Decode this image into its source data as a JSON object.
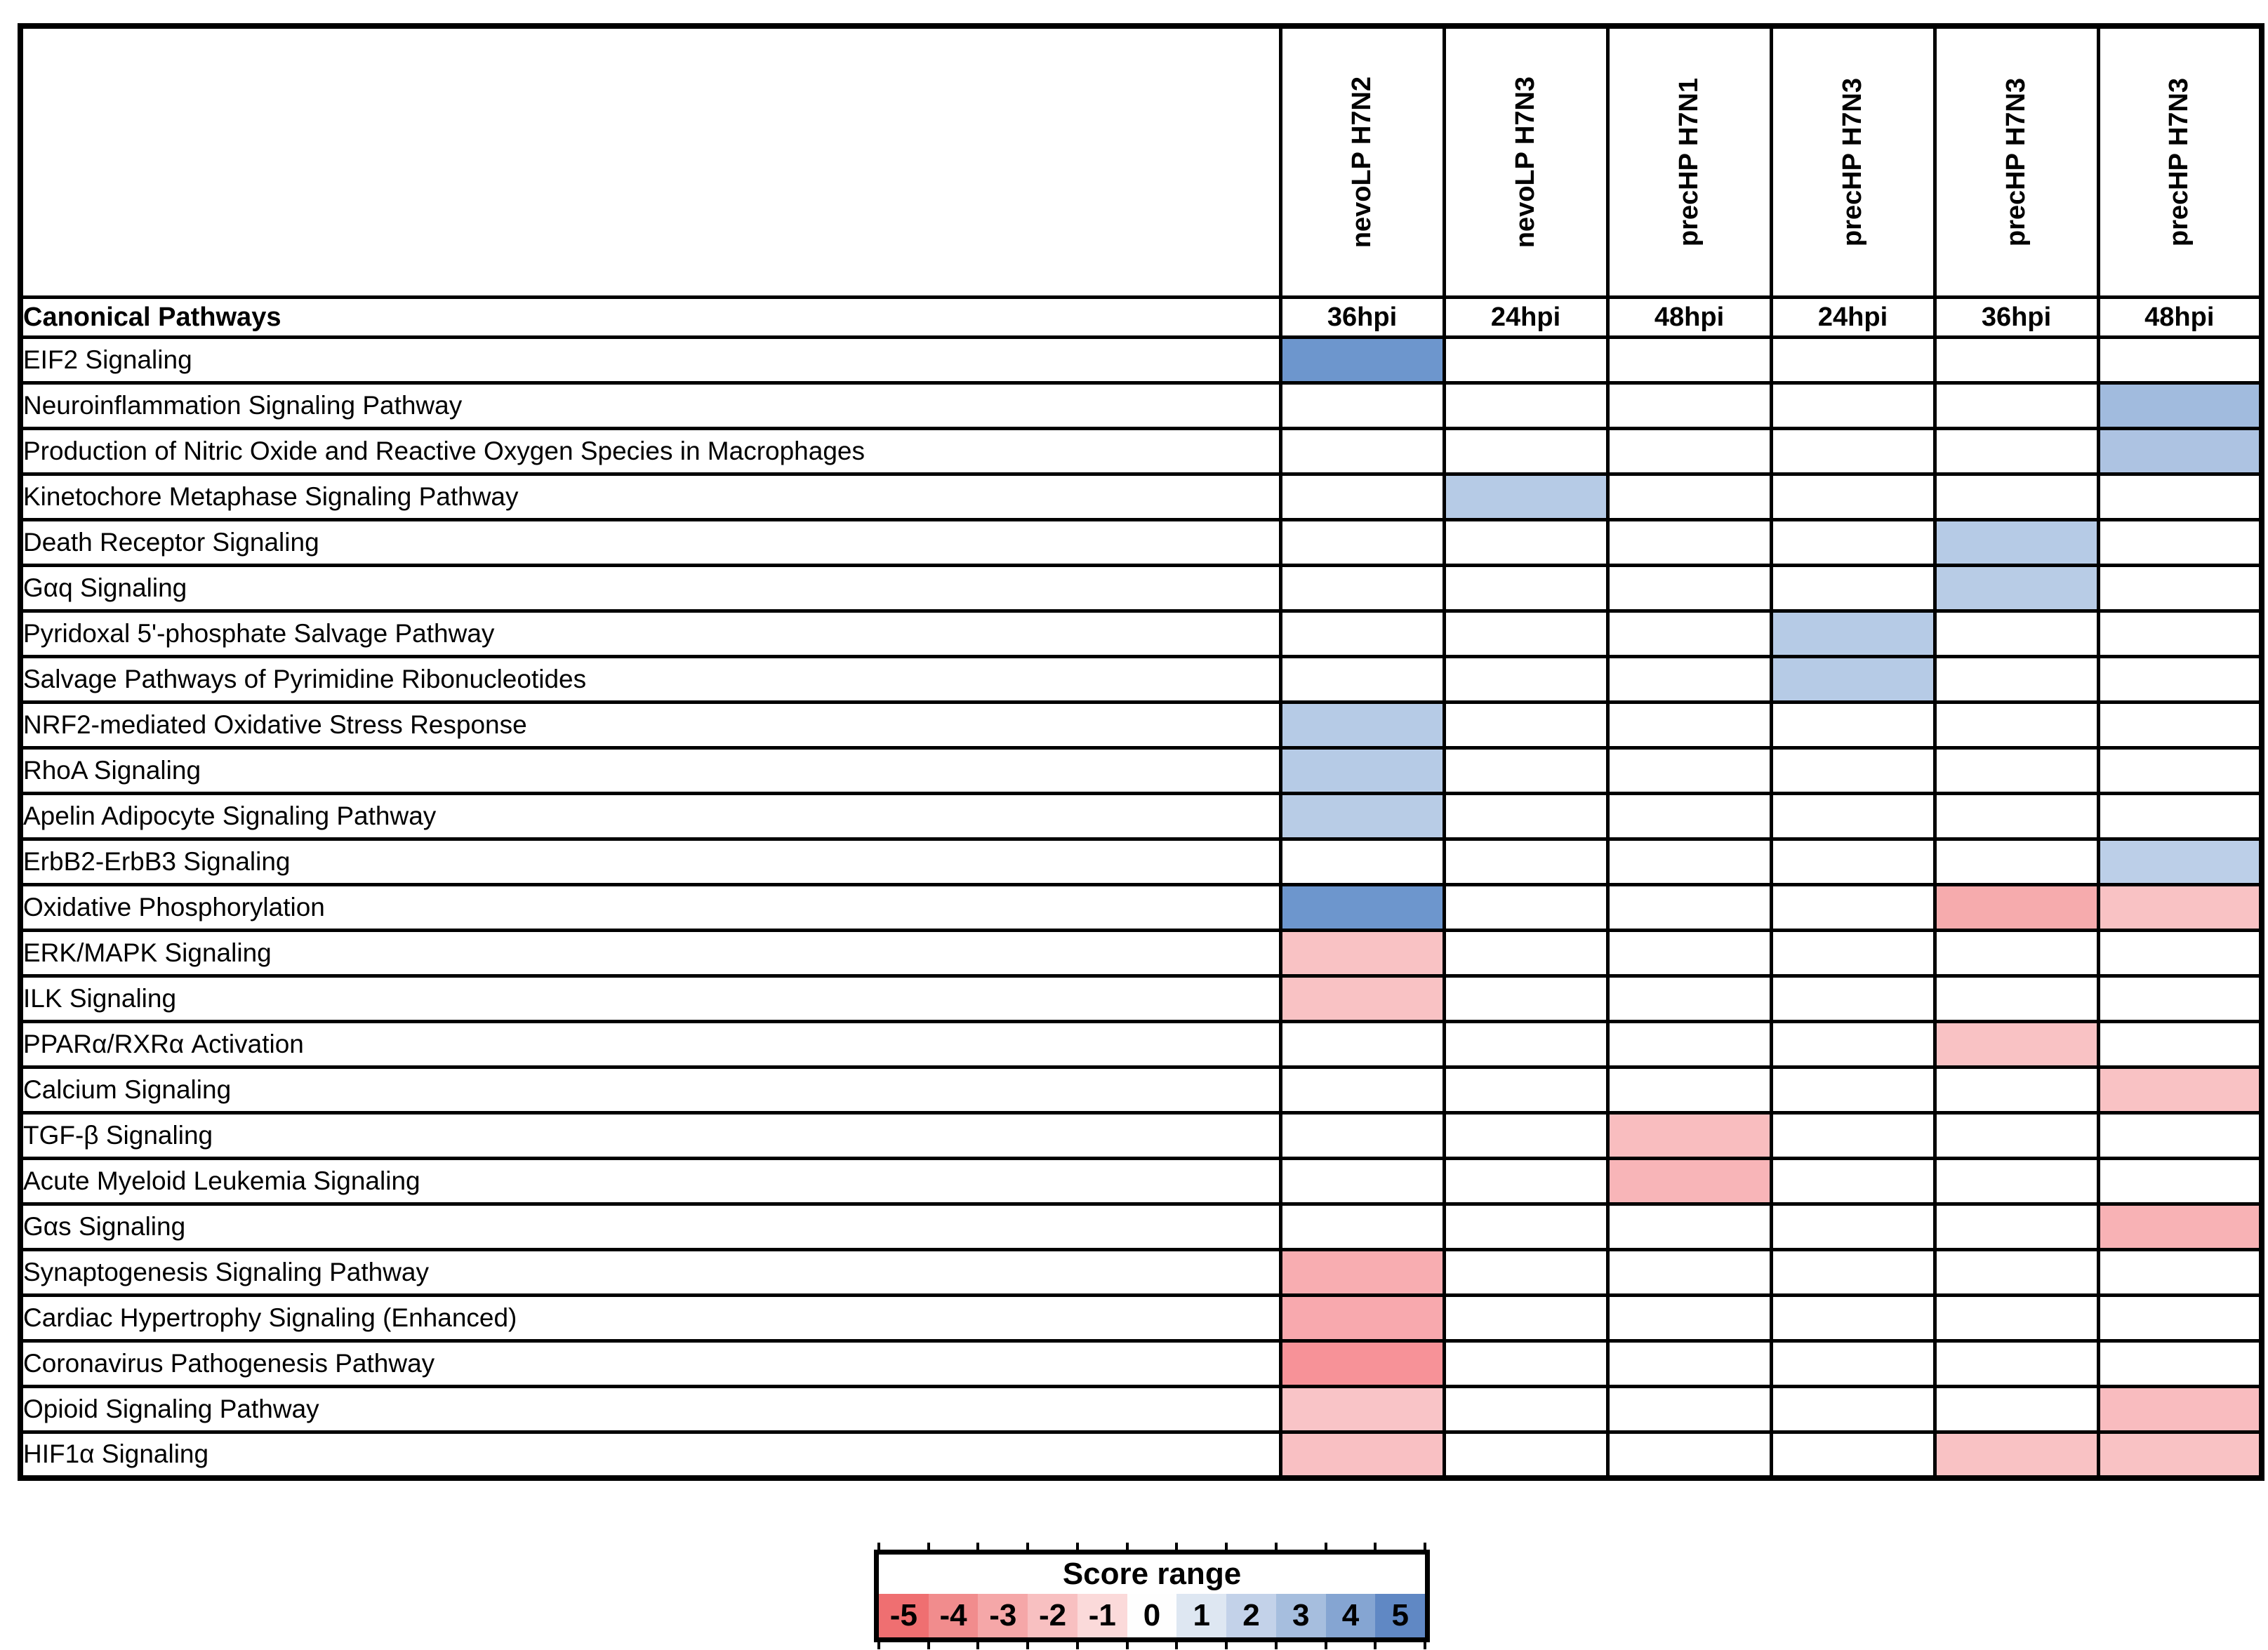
{
  "figure": {
    "corner_header": "Canonical Pathways",
    "background": "#ffffff"
  },
  "chart_data": {
    "type": "heatmap",
    "columns": [
      {
        "virus": "nevoLP H7N2",
        "timepoint": "36hpi"
      },
      {
        "virus": "nevoLP H7N3",
        "timepoint": "24hpi"
      },
      {
        "virus": "precHP H7N1",
        "timepoint": "48hpi"
      },
      {
        "virus": "precHP H7N3",
        "timepoint": "24hpi"
      },
      {
        "virus": "precHP H7N3",
        "timepoint": "36hpi"
      },
      {
        "virus": "precHP H7N3",
        "timepoint": "48hpi"
      }
    ],
    "rows": [
      "EIF2 Signaling",
      "Neuroinflammation Signaling Pathway",
      "Production of Nitric Oxide and Reactive Oxygen Species in Macrophages",
      "Kinetochore Metaphase Signaling Pathway",
      "Death Receptor Signaling",
      "Gαq Signaling",
      "Pyridoxal 5'-phosphate Salvage Pathway",
      "Salvage Pathways of Pyrimidine Ribonucleotides",
      "NRF2-mediated Oxidative Stress Response",
      "RhoA Signaling",
      "Apelin Adipocyte Signaling Pathway",
      "ErbB2-ErbB3 Signaling",
      "Oxidative Phosphorylation",
      "ERK/MAPK Signaling",
      "ILK Signaling",
      "PPARα/RXRα Activation",
      "Calcium Signaling",
      "TGF-β Signaling",
      "Acute Myeloid Leukemia Signaling",
      "Gαs Signaling",
      "Synaptogenesis Signaling Pathway",
      "Cardiac Hypertrophy Signaling (Enhanced)",
      "Coronavirus Pathogenesis Pathway",
      "Opioid Signaling Pathway",
      "HIF1α Signaling"
    ],
    "cells": [
      {
        "pathway": "EIF2 Signaling",
        "row": 0,
        "col": 0,
        "score": 4.5,
        "color": "#6d96cd"
      },
      {
        "pathway": "Neuroinflammation Signaling Pathway",
        "row": 1,
        "col": 5,
        "score": 3.2,
        "color": "#a1bbde"
      },
      {
        "pathway": "Production of Nitric Oxide and Reactive Oxygen Species in Macrophages",
        "row": 2,
        "col": 5,
        "score": 2.9,
        "color": "#adc3e2"
      },
      {
        "pathway": "Kinetochore Metaphase Signaling Pathway",
        "row": 3,
        "col": 1,
        "score": 2.5,
        "color": "#b6cbe6"
      },
      {
        "pathway": "Death Receptor Signaling",
        "row": 4,
        "col": 4,
        "score": 2.5,
        "color": "#b6cbe6"
      },
      {
        "pathway": "Gαq Signaling",
        "row": 5,
        "col": 4,
        "score": 2.4,
        "color": "#b8cce6"
      },
      {
        "pathway": "Pyridoxal 5'-phosphate Salvage Pathway",
        "row": 6,
        "col": 3,
        "score": 2.5,
        "color": "#b6cbe6"
      },
      {
        "pathway": "Salvage Pathways of Pyrimidine Ribonucleotides",
        "row": 7,
        "col": 3,
        "score": 2.5,
        "color": "#b6cbe6"
      },
      {
        "pathway": "NRF2-mediated Oxidative Stress Response",
        "row": 8,
        "col": 0,
        "score": 2.5,
        "color": "#b6cbe6"
      },
      {
        "pathway": "RhoA Signaling",
        "row": 9,
        "col": 0,
        "score": 2.5,
        "color": "#b6cbe6"
      },
      {
        "pathway": "Apelin Adipocyte Signaling Pathway",
        "row": 10,
        "col": 0,
        "score": 2.4,
        "color": "#b8cce6"
      },
      {
        "pathway": "ErbB2-ErbB3 Signaling",
        "row": 11,
        "col": 5,
        "score": 2.2,
        "color": "#bccfe8"
      },
      {
        "pathway": "Oxidative Phosphorylation",
        "row": 12,
        "col": 0,
        "score": 4.5,
        "color": "#6d96cd"
      },
      {
        "pathway": "Oxidative Phosphorylation",
        "row": 12,
        "col": 4,
        "score": -3.1,
        "color": "#f6abad"
      },
      {
        "pathway": "Oxidative Phosphorylation",
        "row": 12,
        "col": 5,
        "score": -2.1,
        "color": "#f9c2c4"
      },
      {
        "pathway": "ERK/MAPK Signaling",
        "row": 13,
        "col": 0,
        "score": -2.1,
        "color": "#f9c2c4"
      },
      {
        "pathway": "ILK Signaling",
        "row": 14,
        "col": 0,
        "score": -2.1,
        "color": "#f9c2c4"
      },
      {
        "pathway": "PPARα/RXRα Activation",
        "row": 15,
        "col": 4,
        "score": -2.1,
        "color": "#f9c2c4"
      },
      {
        "pathway": "Calcium Signaling",
        "row": 16,
        "col": 5,
        "score": -2.1,
        "color": "#f9c2c4"
      },
      {
        "pathway": "TGF-β Signaling",
        "row": 17,
        "col": 2,
        "score": -2.3,
        "color": "#f9bdbf"
      },
      {
        "pathway": "Acute Myeloid Leukemia Signaling",
        "row": 18,
        "col": 2,
        "score": -2.6,
        "color": "#f8b5b8"
      },
      {
        "pathway": "Gαs Signaling",
        "row": 19,
        "col": 5,
        "score": -2.7,
        "color": "#f8b2b5"
      },
      {
        "pathway": "Synaptogenesis Signaling Pathway",
        "row": 20,
        "col": 0,
        "score": -2.9,
        "color": "#f8adb1"
      },
      {
        "pathway": "Cardiac Hypertrophy Signaling (Enhanced)",
        "row": 21,
        "col": 0,
        "score": -3.0,
        "color": "#f8a9ae"
      },
      {
        "pathway": "Coronavirus Pathogenesis Pathway",
        "row": 22,
        "col": 0,
        "score": -3.8,
        "color": "#f79298"
      },
      {
        "pathway": "Opioid Signaling Pathway",
        "row": 23,
        "col": 0,
        "score": -2.0,
        "color": "#f9c4c7"
      },
      {
        "pathway": "Opioid Signaling Pathway",
        "row": 23,
        "col": 5,
        "score": -2.3,
        "color": "#f9bcbf"
      },
      {
        "pathway": "HIF1α Signaling",
        "row": 24,
        "col": 0,
        "score": -2.2,
        "color": "#f9c0c3"
      },
      {
        "pathway": "HIF1α Signaling",
        "row": 24,
        "col": 4,
        "score": -2.1,
        "color": "#f9c2c4"
      },
      {
        "pathway": "HIF1α Signaling",
        "row": 24,
        "col": 5,
        "score": -2.1,
        "color": "#f9c2c4"
      }
    ],
    "legend": {
      "title": "Score range",
      "labels": [
        "-5",
        "-4",
        "-3",
        "-2",
        "-1",
        "0",
        "1",
        "2",
        "3",
        "4",
        "5"
      ],
      "colors": [
        "#ef6f71",
        "#f18c8d",
        "#f5a7a8",
        "#f8c0c1",
        "#fbdada",
        "#fefefe",
        "#dee7f2",
        "#c3d2e9",
        "#a6bede",
        "#85a5d2",
        "#6088c4"
      ]
    },
    "score_range": [
      -5,
      5
    ],
    "empty_cell_color": "#ffffff"
  }
}
